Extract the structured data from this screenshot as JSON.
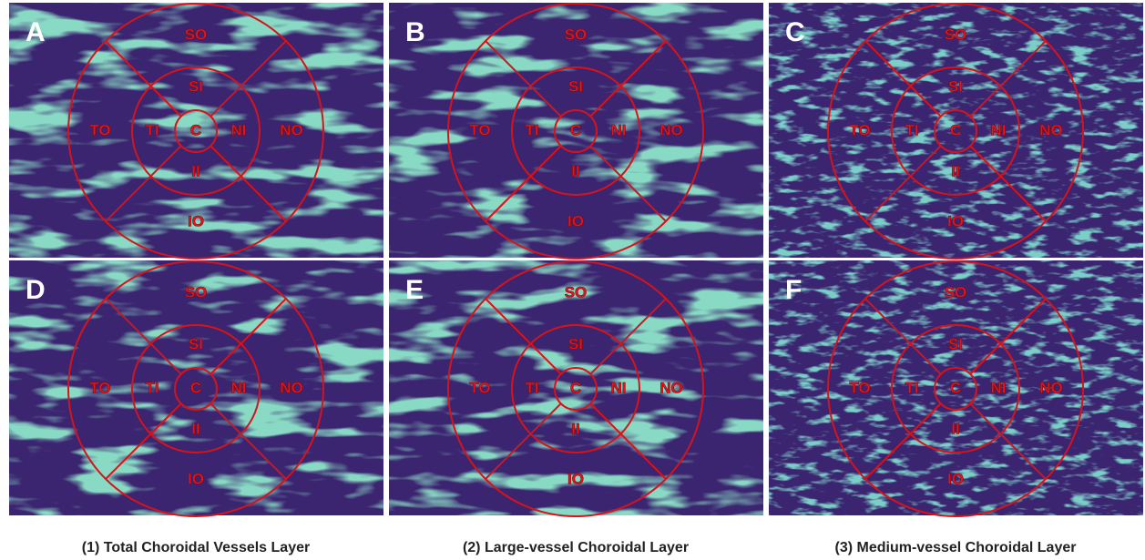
{
  "panels": [
    {
      "letter": "A"
    },
    {
      "letter": "B"
    },
    {
      "letter": "C"
    },
    {
      "letter": "D"
    },
    {
      "letter": "E"
    },
    {
      "letter": "F"
    }
  ],
  "region_labels": [
    "SO",
    "SI",
    "TO",
    "TI",
    "C",
    "NI",
    "NO",
    "II",
    "IO"
  ],
  "captions": [
    "(1) Total Choroidal Vessels Layer",
    "(2) Large-vessel Choroidal Layer",
    "(3) Medium-vessel Choroidal Layer"
  ]
}
